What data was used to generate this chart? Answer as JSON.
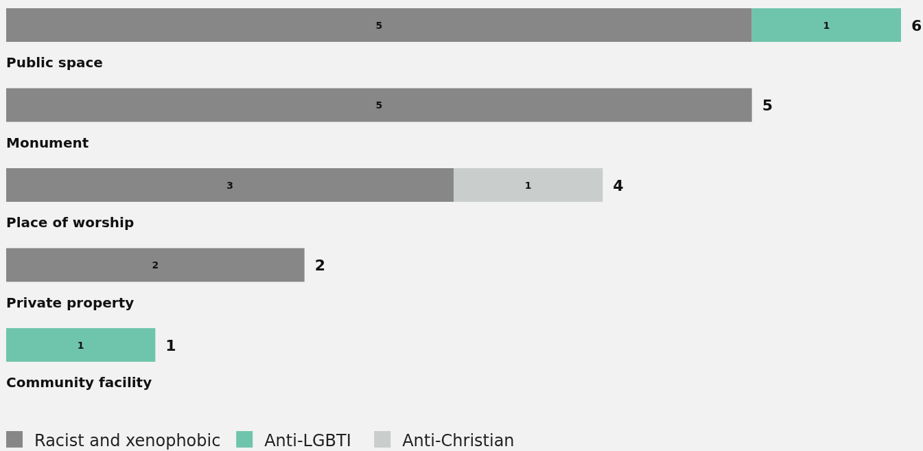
{
  "chart_data": {
    "type": "bar",
    "orientation": "horizontal",
    "stacked": true,
    "categories": [
      "Public space",
      "Monument",
      "Place of worship",
      "Private property",
      "Community facility"
    ],
    "series": [
      {
        "name": "Racist and xenophobic",
        "color": "#878787",
        "values": [
          5,
          5,
          3,
          2,
          null
        ]
      },
      {
        "name": "Anti-LGBTI",
        "color": "#6fc5ab",
        "values": [
          1,
          null,
          null,
          null,
          1
        ]
      },
      {
        "name": "Anti-Christian",
        "color": "#c9cdcc",
        "values": [
          null,
          null,
          1,
          null,
          null
        ]
      }
    ],
    "data_labels": true,
    "totals": [
      "6",
      "5",
      "4",
      "2",
      "1"
    ],
    "legend": "bottom left"
  }
}
